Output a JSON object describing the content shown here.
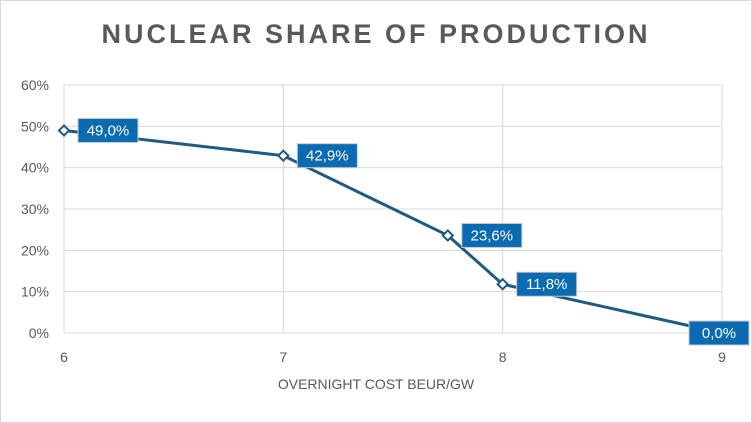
{
  "chart_data": {
    "type": "line",
    "title": "NUCLEAR SHARE OF PRODUCTION",
    "xlabel": "OVERNIGHT COST BEUR/GW",
    "ylabel": "",
    "x": [
      6,
      7,
      7.75,
      8,
      9
    ],
    "values": [
      0.49,
      0.429,
      0.236,
      0.118,
      0.0
    ],
    "data_labels": [
      "49,0%",
      "42,9%",
      "23,6%",
      "11,8%",
      "0,0%"
    ],
    "xlim": [
      6,
      9
    ],
    "ylim": [
      0,
      0.6
    ],
    "x_ticks": [
      6,
      7,
      8,
      9
    ],
    "x_tick_labels": [
      "6",
      "7",
      "8",
      "9"
    ],
    "y_ticks": [
      0,
      0.1,
      0.2,
      0.3,
      0.4,
      0.5,
      0.6
    ],
    "y_tick_labels": [
      "0%",
      "10%",
      "20%",
      "30%",
      "40%",
      "50%",
      "60%"
    ],
    "grid": true,
    "legend": "none",
    "colors": {
      "line": "#1f5b80",
      "label_bg": "#0a6ab2",
      "label_border": "#c9c9c9",
      "grid": "#d9d9d9",
      "text": "#595959"
    }
  }
}
